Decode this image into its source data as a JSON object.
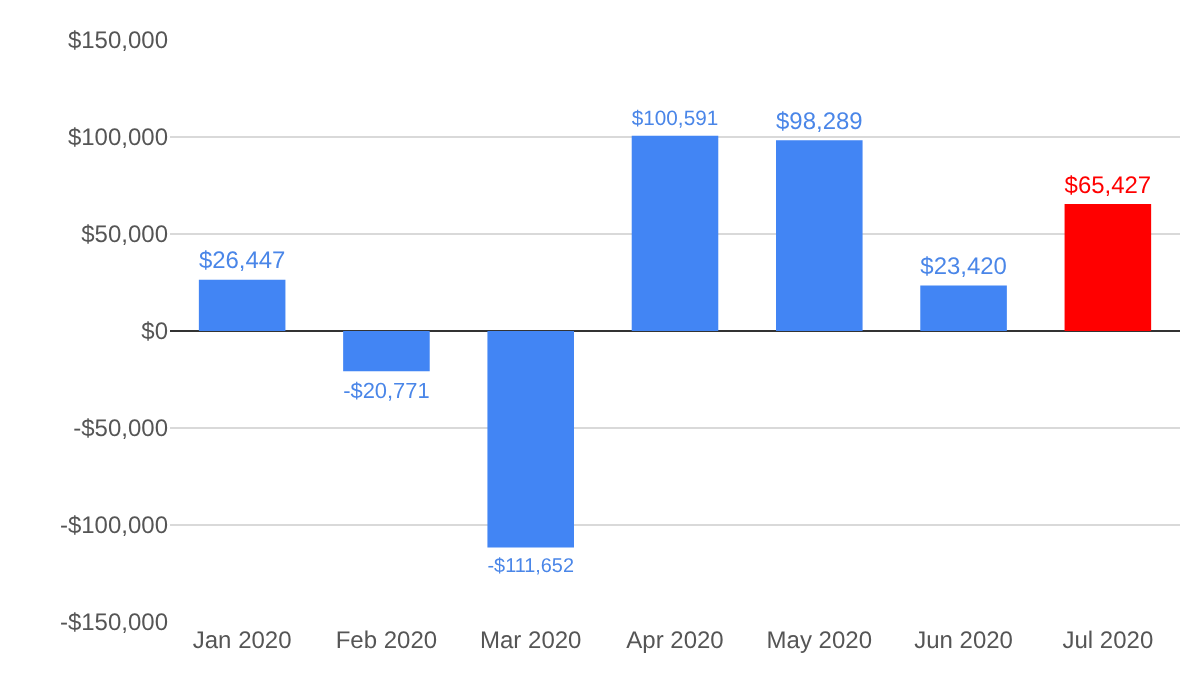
{
  "chart_data": {
    "type": "bar",
    "categories": [
      "Jan 2020",
      "Feb 2020",
      "Mar 2020",
      "Apr 2020",
      "May 2020",
      "Jun 2020",
      "Jul 2020"
    ],
    "values": [
      26447,
      -20771,
      -111652,
      100591,
      98289,
      23420,
      65427
    ],
    "colors": [
      "#4285f4",
      "#4285f4",
      "#4285f4",
      "#4285f4",
      "#4285f4",
      "#4285f4",
      "#ff0000"
    ],
    "value_labels": [
      "$26,447",
      "-$20,771",
      "-$111,652",
      "$100,591",
      "$98,289",
      "$23,420",
      "$65,427"
    ],
    "ylim": [
      -150000,
      150000
    ],
    "yticks": [
      {
        "value": -150000,
        "label": "-$150,000"
      },
      {
        "value": -100000,
        "label": "-$100,000"
      },
      {
        "value": -50000,
        "label": "-$50,000"
      },
      {
        "value": 0,
        "label": "$0"
      },
      {
        "value": 50000,
        "label": "$50,000"
      },
      {
        "value": 100000,
        "label": "$100,000"
      },
      {
        "value": 150000,
        "label": "$150,000"
      }
    ],
    "grid": "y",
    "legend": false
  }
}
